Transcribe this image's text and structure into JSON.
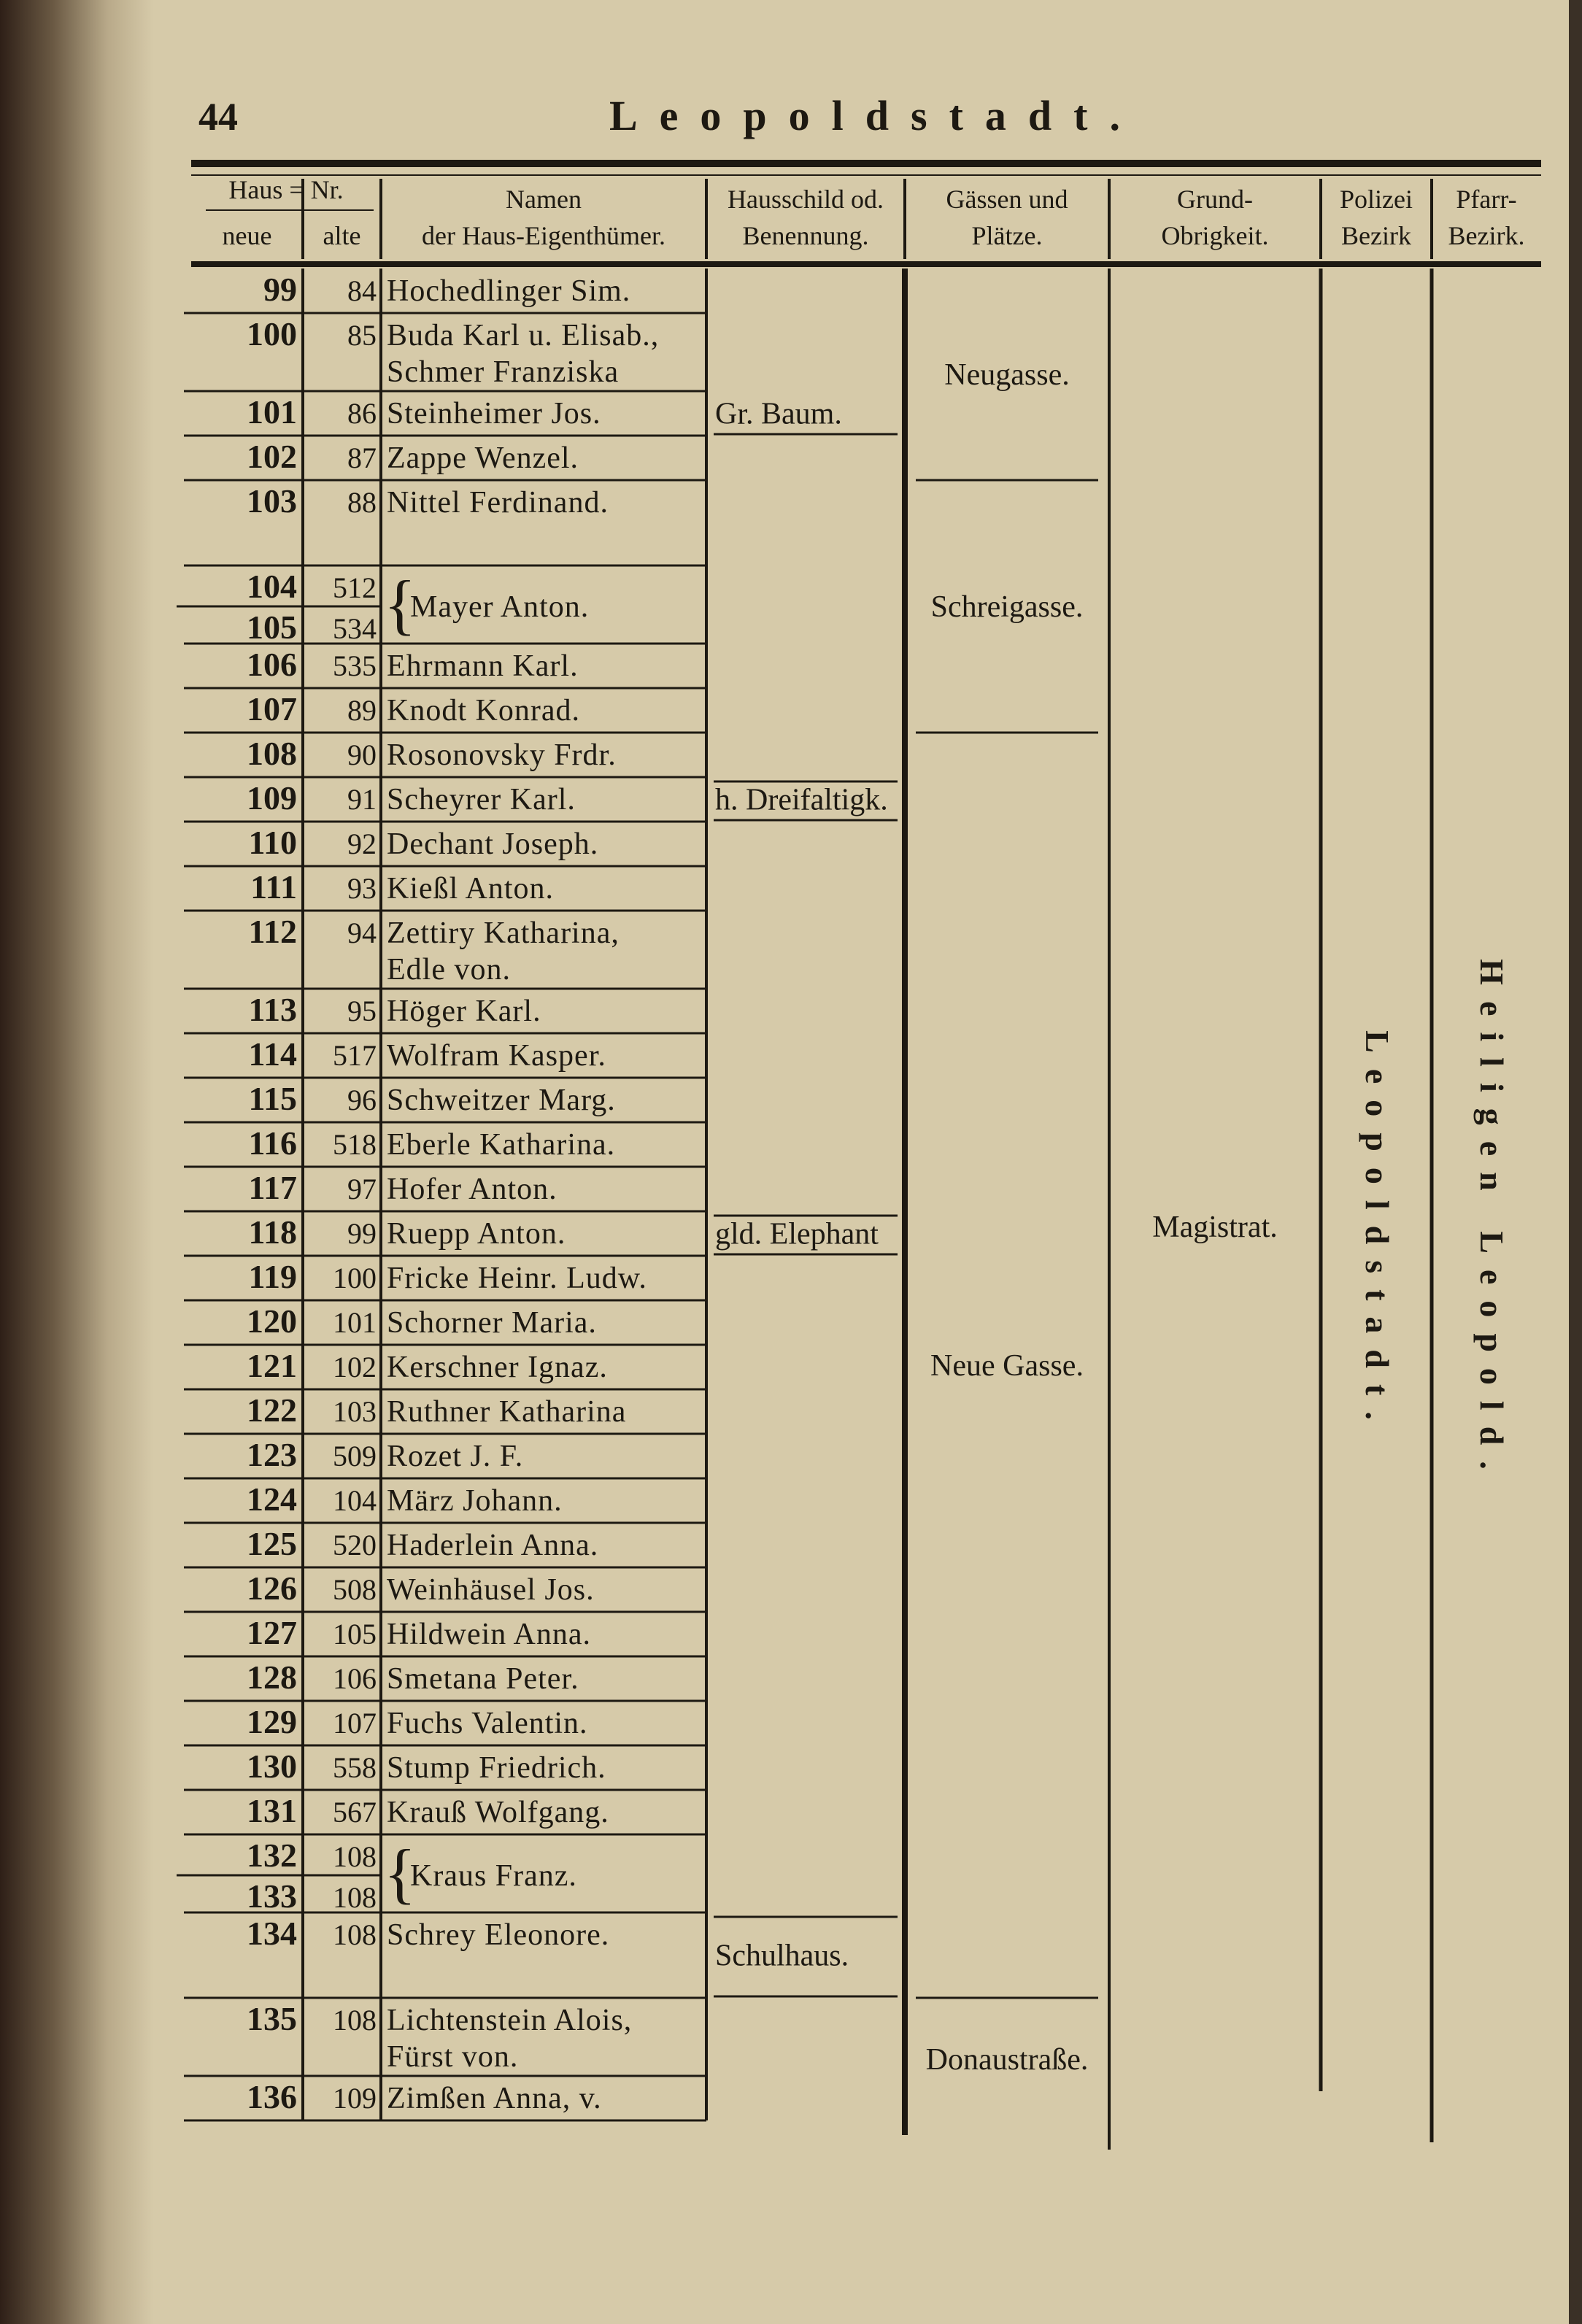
{
  "header": {
    "page_number": "44",
    "title": "Leopoldstadt."
  },
  "columns": {
    "haus_nr": "Haus = Nr.",
    "neue": "neue",
    "alte": "alte",
    "namen": [
      "Namen",
      "der Haus-Eigenthümer."
    ],
    "hausschild": [
      "Hausschild od.",
      "Benennung."
    ],
    "gassen": [
      "Gässen und",
      "Plätze."
    ],
    "grund": [
      "Grund-",
      "Obrigkeit."
    ],
    "polizei": [
      "Polizei",
      "Bezirk"
    ],
    "pfarr": [
      "Pfarr-",
      "Bezirk."
    ]
  },
  "rows": [
    {
      "neue": [
        "99"
      ],
      "alte": [
        "84"
      ],
      "name": [
        "Hochedlinger Sim."
      ]
    },
    {
      "neue": [
        "100"
      ],
      "alte": [
        "85"
      ],
      "name": [
        "Buda Karl u. Elisab.,",
        "Schmer Franziska"
      ]
    },
    {
      "neue": [
        "101"
      ],
      "alte": [
        "86"
      ],
      "name": [
        "Steinheimer Jos."
      ]
    },
    {
      "neue": [
        "102"
      ],
      "alte": [
        "87"
      ],
      "name": [
        "Zappe Wenzel."
      ]
    },
    {
      "neue": [
        "103"
      ],
      "alte": [
        "88"
      ],
      "name": [
        "Nittel Ferdinand."
      ]
    },
    {
      "neue": [
        "104",
        "105"
      ],
      "alte": [
        "512",
        "534"
      ],
      "name": [
        "Mayer Anton."
      ]
    },
    {
      "neue": [
        "106"
      ],
      "alte": [
        "535"
      ],
      "name": [
        "Ehrmann Karl."
      ]
    },
    {
      "neue": [
        "107"
      ],
      "alte": [
        "89"
      ],
      "name": [
        "Knodt Konrad."
      ]
    },
    {
      "neue": [
        "108"
      ],
      "alte": [
        "90"
      ],
      "name": [
        "Rosonovsky Frdr."
      ]
    },
    {
      "neue": [
        "109"
      ],
      "alte": [
        "91"
      ],
      "name": [
        "Scheyrer Karl."
      ]
    },
    {
      "neue": [
        "110"
      ],
      "alte": [
        "92"
      ],
      "name": [
        "Dechant Joseph."
      ]
    },
    {
      "neue": [
        "111"
      ],
      "alte": [
        "93"
      ],
      "name": [
        "Kießl Anton."
      ]
    },
    {
      "neue": [
        "112"
      ],
      "alte": [
        "94"
      ],
      "name": [
        "Zettiry Katharina,",
        "Edle von."
      ]
    },
    {
      "neue": [
        "113"
      ],
      "alte": [
        "95"
      ],
      "name": [
        "Höger Karl."
      ]
    },
    {
      "neue": [
        "114"
      ],
      "alte": [
        "517"
      ],
      "name": [
        "Wolfram Kasper."
      ]
    },
    {
      "neue": [
        "115"
      ],
      "alte": [
        "96"
      ],
      "name": [
        "Schweitzer Marg."
      ]
    },
    {
      "neue": [
        "116"
      ],
      "alte": [
        "518"
      ],
      "name": [
        "Eberle Katharina."
      ]
    },
    {
      "neue": [
        "117"
      ],
      "alte": [
        "97"
      ],
      "name": [
        "Hofer Anton."
      ]
    },
    {
      "neue": [
        "118"
      ],
      "alte": [
        "99"
      ],
      "name": [
        "Ruepp Anton."
      ]
    },
    {
      "neue": [
        "119"
      ],
      "alte": [
        "100"
      ],
      "name": [
        "Fricke Heinr. Ludw."
      ]
    },
    {
      "neue": [
        "120"
      ],
      "alte": [
        "101"
      ],
      "name": [
        "Schorner Maria."
      ]
    },
    {
      "neue": [
        "121"
      ],
      "alte": [
        "102"
      ],
      "name": [
        "Kerschner Ignaz."
      ]
    },
    {
      "neue": [
        "122"
      ],
      "alte": [
        "103"
      ],
      "name": [
        "Ruthner Katharina"
      ]
    },
    {
      "neue": [
        "123"
      ],
      "alte": [
        "509"
      ],
      "name": [
        "Rozet J. F."
      ]
    },
    {
      "neue": [
        "124"
      ],
      "alte": [
        "104"
      ],
      "name": [
        "März Johann."
      ]
    },
    {
      "neue": [
        "125"
      ],
      "alte": [
        "520"
      ],
      "name": [
        "Haderlein Anna."
      ]
    },
    {
      "neue": [
        "126"
      ],
      "alte": [
        "508"
      ],
      "name": [
        "Weinhäusel Jos."
      ]
    },
    {
      "neue": [
        "127"
      ],
      "alte": [
        "105"
      ],
      "name": [
        "Hildwein Anna."
      ]
    },
    {
      "neue": [
        "128"
      ],
      "alte": [
        "106"
      ],
      "name": [
        "Smetana Peter."
      ]
    },
    {
      "neue": [
        "129"
      ],
      "alte": [
        "107"
      ],
      "name": [
        "Fuchs Valentin."
      ]
    },
    {
      "neue": [
        "130"
      ],
      "alte": [
        "558"
      ],
      "name": [
        "Stump Friedrich."
      ]
    },
    {
      "neue": [
        "131"
      ],
      "alte": [
        "567"
      ],
      "name": [
        "Krauß Wolfgang."
      ]
    },
    {
      "neue": [
        "132",
        "133"
      ],
      "alte": [
        "108",
        "108"
      ],
      "name": [
        "Kraus Franz."
      ]
    },
    {
      "neue": [
        "134"
      ],
      "alte": [
        "108"
      ],
      "name": [
        "Schrey Eleonore."
      ]
    },
    {
      "neue": [
        "135"
      ],
      "alte": [
        "108"
      ],
      "name": [
        "Lichtenstein Alois,",
        "Fürst von."
      ]
    },
    {
      "neue": [
        "136"
      ],
      "alte": [
        "109"
      ],
      "name": [
        "Zimßen Anna, v."
      ]
    }
  ],
  "hausschild": [
    "Gr. Baum.",
    "h. Dreifaltigk.",
    "gld. Elephant",
    "Schulhaus."
  ],
  "gassen": [
    "Neugasse.",
    "Schreigasse.",
    "Neue Gasse.",
    "Donaustraße."
  ],
  "grund": "Magistrat.",
  "polizei": "Leopoldstadt.",
  "pfarr": "Heiligen Leopold."
}
